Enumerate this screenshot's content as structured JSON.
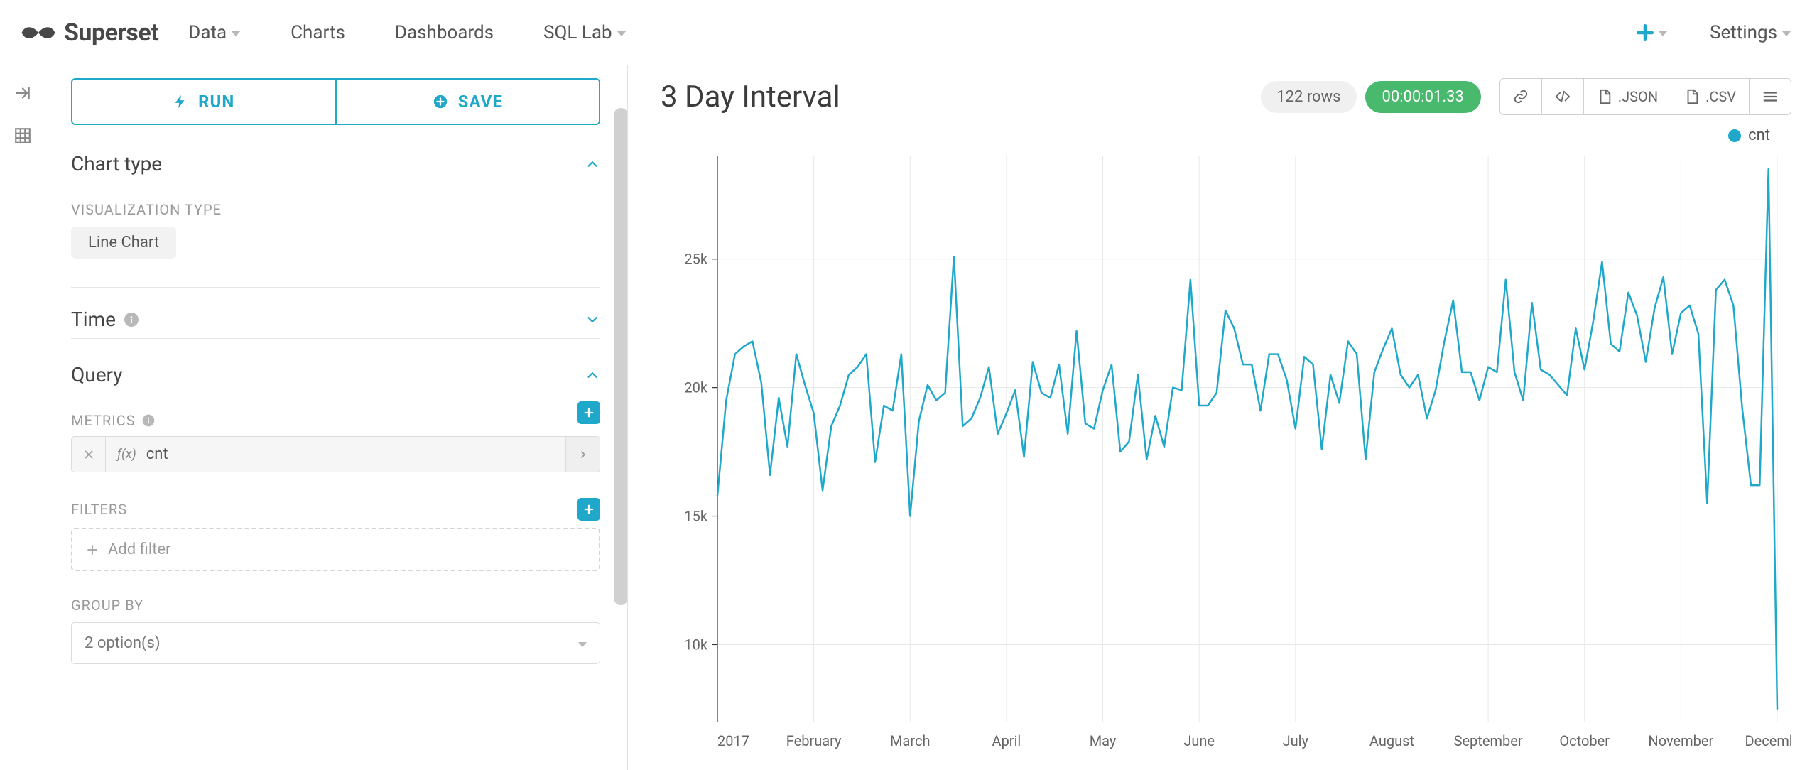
{
  "brand": {
    "name": "Superset",
    "logo_color": "#484848"
  },
  "nav": {
    "items": [
      {
        "label": "Data",
        "has_caret": true
      },
      {
        "label": "Charts",
        "has_caret": false
      },
      {
        "label": "Dashboards",
        "has_caret": false
      },
      {
        "label": "SQL Lab",
        "has_caret": true
      }
    ],
    "plus_color": "#1fa8c9",
    "settings_label": "Settings"
  },
  "panel": {
    "run_label": "RUN",
    "save_label": "SAVE",
    "accent_color": "#1fa8c9",
    "sections": {
      "chart_type": {
        "title": "Chart type",
        "expanded": true,
        "viz_label": "VISUALIZATION TYPE",
        "viz_value": "Line Chart"
      },
      "time": {
        "title": "Time",
        "expanded": false
      },
      "query": {
        "title": "Query",
        "expanded": true,
        "metrics_label": "METRICS",
        "metric_value": "cnt",
        "filters_label": "FILTERS",
        "add_filter_placeholder": "Add filter",
        "groupby_label": "GROUP BY",
        "groupby_value": "2 option(s)"
      }
    }
  },
  "main": {
    "title": "3 Day Interval",
    "rows_label": "122 rows",
    "duration_label": "00:00:01.33",
    "duration_bg": "#49b96d",
    "json_label": ".JSON",
    "csv_label": ".CSV"
  },
  "chart": {
    "type": "line",
    "series_name": "cnt",
    "series_color": "#1fa8c9",
    "line_width": 2.5,
    "background_color": "#ffffff",
    "grid_color": "#e8e8e8",
    "axis_color": "#333333",
    "tick_fontsize": 20,
    "x_labels": [
      "2017",
      "February",
      "March",
      "April",
      "May",
      "June",
      "July",
      "August",
      "September",
      "October",
      "November",
      "December"
    ],
    "y_ticks": [
      10000,
      15000,
      20000,
      25000
    ],
    "y_tick_labels": [
      "10k",
      "15k",
      "20k",
      "25k"
    ],
    "ylim": [
      7000,
      29000
    ],
    "values": [
      15800,
      19500,
      21300,
      21600,
      21800,
      20200,
      16600,
      19600,
      17700,
      21300,
      20100,
      19000,
      16000,
      18500,
      19300,
      20500,
      20800,
      21300,
      17100,
      19300,
      19100,
      21300,
      15000,
      18700,
      20100,
      19500,
      19800,
      25100,
      18500,
      18800,
      19600,
      20800,
      18200,
      19000,
      19900,
      17300,
      21000,
      19800,
      19600,
      20900,
      18200,
      22200,
      18600,
      18400,
      19900,
      20900,
      17500,
      17900,
      20500,
      17200,
      18900,
      17700,
      20000,
      19900,
      24200,
      19300,
      19300,
      19800,
      23000,
      22300,
      20900,
      20900,
      19100,
      21300,
      21300,
      20300,
      18400,
      21200,
      20900,
      17600,
      20500,
      19400,
      21800,
      21300,
      17200,
      20600,
      21500,
      22300,
      20500,
      20000,
      20500,
      18800,
      19900,
      21800,
      23400,
      20600,
      20600,
      19500,
      20800,
      20600,
      24200,
      20600,
      19500,
      23300,
      20700,
      20500,
      20100,
      19700,
      22300,
      20700,
      22600,
      24900,
      21700,
      21400,
      23700,
      22800,
      21000,
      23100,
      24300,
      21300,
      22900,
      23200,
      22100,
      15500,
      23800,
      24200,
      23200,
      19200,
      16200,
      16200,
      28500,
      7500
    ]
  }
}
